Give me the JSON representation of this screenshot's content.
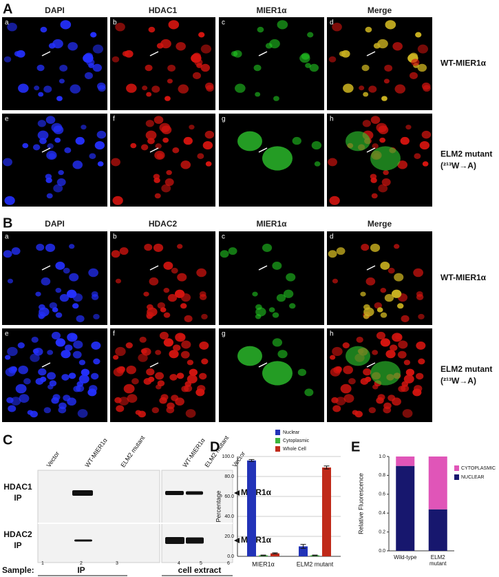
{
  "panels": {
    "A": {
      "label": "A",
      "columns": [
        "DAPI",
        "HDAC1",
        "MIER1α",
        "Merge"
      ],
      "subpanels": [
        "a",
        "b",
        "c",
        "d",
        "e",
        "f",
        "g",
        "h"
      ],
      "rows": [
        [
          "WT-MIER1α"
        ],
        [
          "ELM2 mutant",
          "(²¹³W→A)"
        ]
      ]
    },
    "B": {
      "label": "B",
      "columns": [
        "DAPI",
        "HDAC2",
        "MIER1α",
        "Merge"
      ],
      "subpanels": [
        "a",
        "b",
        "c",
        "d",
        "e",
        "f",
        "g",
        "h"
      ],
      "rows": [
        [
          "WT-MIER1α"
        ],
        [
          "ELM2 mutant",
          "(²¹³W→A)"
        ]
      ]
    },
    "C": {
      "label": "C",
      "lanes": [
        "Vector",
        "WT-MIER1α",
        "ELM2 mutant",
        "WT-MIER1α",
        "ELM2 mutant",
        "Vector"
      ],
      "lane_numbers": [
        1,
        2,
        3,
        4,
        5,
        6
      ],
      "blots": [
        {
          "label": [
            "HDAC1",
            "IP"
          ],
          "band": "MIER1α"
        },
        {
          "label": [
            "HDAC2",
            "IP"
          ],
          "band": "MIER1α"
        }
      ],
      "sample_label": "Sample:",
      "groups": [
        "IP",
        "cell extract"
      ]
    }
  },
  "chart_data": [
    {
      "type": "bar",
      "panel": "D",
      "ylabel": "Percentage",
      "categories": [
        "MIER1α",
        "ELM2 mutant"
      ],
      "series": [
        {
          "name": "Nuclear",
          "color": "#2233b8",
          "values": [
            96,
            10
          ],
          "errors": [
            1,
            2
          ]
        },
        {
          "name": "Cytoplasmic",
          "color": "#3cb43c",
          "values": [
            1,
            1
          ],
          "errors": [
            0.3,
            0.3
          ]
        },
        {
          "name": "Whole Cell",
          "color": "#c02a1a",
          "values": [
            3,
            89
          ],
          "errors": [
            0.5,
            1.5
          ]
        }
      ],
      "ylim": [
        0,
        100
      ],
      "yticks": [
        {
          "value": 0,
          "label": "0.0"
        },
        {
          "value": 20,
          "label": "20.0"
        },
        {
          "value": 40,
          "label": "40.0"
        },
        {
          "value": 60,
          "label": "60.0"
        },
        {
          "value": 80,
          "label": "80.0"
        },
        {
          "value": 100,
          "label": "100.0"
        }
      ],
      "grid": true
    },
    {
      "type": "stacked_bar",
      "panel": "E",
      "ylabel": "Relative Fluorescence",
      "categories": [
        "Wild-type",
        "ELM2 mutant"
      ],
      "series": [
        {
          "name": "NUCLEAR",
          "color": "#17176e",
          "values": [
            0.9,
            0.44
          ]
        },
        {
          "name": "CYTOPLASMIC",
          "color": "#e055b8",
          "values": [
            0.1,
            0.56
          ]
        }
      ],
      "ylim": [
        0,
        1
      ],
      "yticks": [
        {
          "value": 0,
          "label": "0.0"
        },
        {
          "value": 0.2,
          "label": "0.2"
        },
        {
          "value": 0.4,
          "label": "0.4"
        },
        {
          "value": 0.6,
          "label": "0.6"
        },
        {
          "value": 0.8,
          "label": "0.8"
        },
        {
          "value": 1,
          "label": "1.0"
        }
      ],
      "grid": false
    }
  ]
}
